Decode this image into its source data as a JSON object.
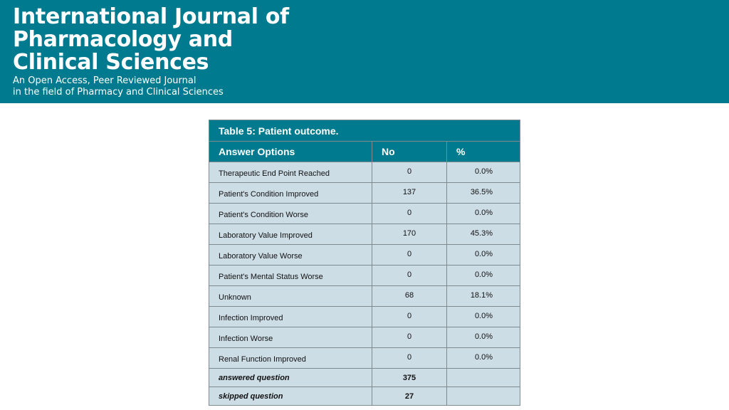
{
  "header": {
    "title_lines": [
      "International Journal of",
      "Pharmacology and",
      "Clinical Sciences"
    ],
    "subtitle_lines": [
      "An Open Access, Peer Reviewed Journal",
      "in the field of Pharmacy and Clinical Sciences"
    ],
    "background_color": "#007a8f"
  },
  "table": {
    "caption": "Table 5: Patient outcome.",
    "columns": [
      "Answer Options",
      "No",
      "%"
    ],
    "rows": [
      {
        "option": "Therapeutic End Point Reached",
        "no": "0",
        "pct": "0.0%"
      },
      {
        "option": "Patient's Condition Improved",
        "no": "137",
        "pct": "36.5%"
      },
      {
        "option": "Patient's Condition Worse",
        "no": "0",
        "pct": "0.0%"
      },
      {
        "option": "Laboratory Value Improved",
        "no": "170",
        "pct": "45.3%"
      },
      {
        "option": "Laboratory Value Worse",
        "no": "0",
        "pct": "0.0%"
      },
      {
        "option": "Patient's Mental Status Worse",
        "no": "0",
        "pct": "0.0%"
      },
      {
        "option": "Unknown",
        "no": "68",
        "pct": "18.1%"
      },
      {
        "option": "Infection Improved",
        "no": "0",
        "pct": "0.0%"
      },
      {
        "option": "Infection Worse",
        "no": "0",
        "pct": "0.0%"
      },
      {
        "option": "Renal Function Improved",
        "no": "0",
        "pct": "0.0%"
      }
    ],
    "footer": [
      {
        "label": "answered question",
        "value": "375"
      },
      {
        "label": "skipped question",
        "value": "27"
      }
    ],
    "header_color": "#007a8f",
    "body_color": "#cddde6"
  }
}
